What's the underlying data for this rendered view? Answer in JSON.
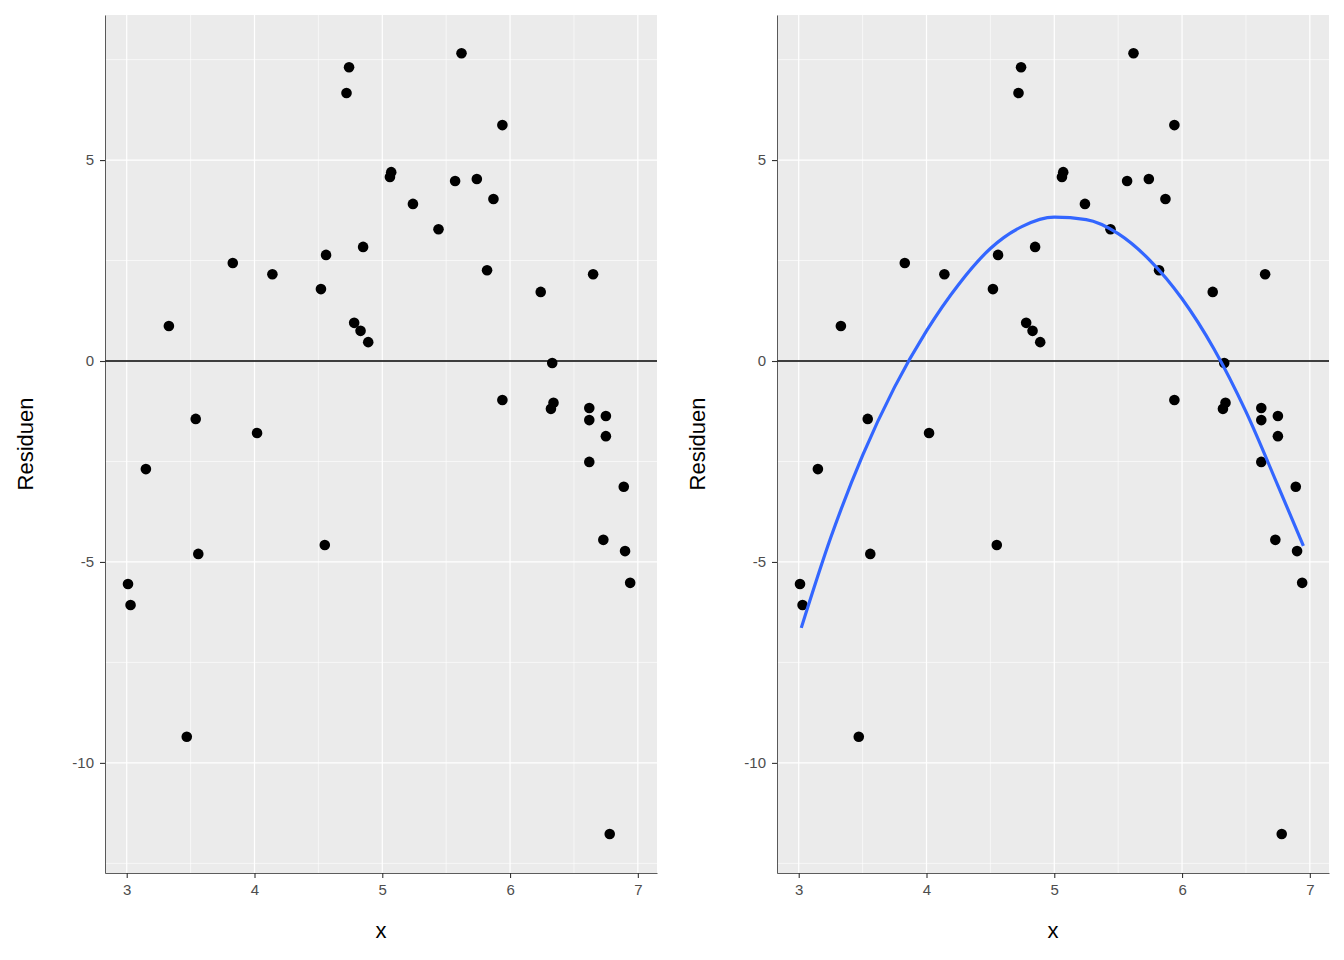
{
  "chart_data": [
    {
      "type": "scatter",
      "x_label": "x",
      "y_label": "Residuen",
      "xlim": [
        2.83,
        7.15
      ],
      "ylim": [
        -12.74,
        8.61
      ],
      "xticks": [
        3,
        4,
        5,
        6,
        7
      ],
      "yticks": [
        -10,
        -5,
        0,
        5
      ],
      "xminor": [
        3.5,
        4.5,
        5.5,
        6.5
      ],
      "yminor": [
        -12.5,
        -7.5,
        -2.5,
        2.5,
        7.5
      ],
      "grid": true,
      "hline": 0,
      "series": [
        {
          "type": "scatter",
          "color": "#000000",
          "marker": "circle",
          "x": [
            3.01,
            3.03,
            3.15,
            3.33,
            3.47,
            3.54,
            3.56,
            3.83,
            4.02,
            4.14,
            4.52,
            4.56,
            4.55,
            4.72,
            4.74,
            4.78,
            4.83,
            4.85,
            4.89,
            5.06,
            5.07,
            5.24,
            5.44,
            5.57,
            5.62,
            5.74,
            5.82,
            5.87,
            5.94,
            5.94,
            6.24,
            6.33,
            6.32,
            6.34,
            6.62,
            6.62,
            6.62,
            6.65,
            6.73,
            6.75,
            6.75,
            6.78,
            6.89,
            6.9,
            6.94
          ],
          "values": [
            -5.55,
            -6.07,
            -2.69,
            0.87,
            -9.35,
            -1.44,
            -4.8,
            2.44,
            -1.79,
            2.16,
            1.79,
            2.64,
            -4.58,
            6.67,
            7.31,
            0.95,
            0.75,
            2.84,
            0.47,
            4.58,
            4.7,
            3.91,
            3.28,
            4.48,
            7.66,
            4.53,
            2.26,
            4.03,
            5.87,
            -0.97,
            1.72,
            -0.05,
            -1.19,
            -1.04,
            -1.17,
            -1.47,
            -2.51,
            2.16,
            -4.45,
            -1.87,
            -1.37,
            -11.77,
            -3.13,
            -4.73,
            -5.52
          ]
        }
      ]
    },
    {
      "type": "scatter",
      "x_label": "x",
      "y_label": "Residuen",
      "xlim": [
        2.83,
        7.15
      ],
      "ylim": [
        -12.74,
        8.61
      ],
      "xticks": [
        3,
        4,
        5,
        6,
        7
      ],
      "yticks": [
        -10,
        -5,
        0,
        5
      ],
      "xminor": [
        3.5,
        4.5,
        5.5,
        6.5
      ],
      "yminor": [
        -12.5,
        -7.5,
        -2.5,
        2.5,
        7.5
      ],
      "grid": true,
      "hline": 0,
      "series": [
        {
          "type": "scatter",
          "color": "#000000",
          "marker": "circle",
          "x": [
            3.01,
            3.03,
            3.15,
            3.33,
            3.47,
            3.54,
            3.56,
            3.83,
            4.02,
            4.14,
            4.52,
            4.56,
            4.55,
            4.72,
            4.74,
            4.78,
            4.83,
            4.85,
            4.89,
            5.06,
            5.07,
            5.24,
            5.44,
            5.57,
            5.62,
            5.74,
            5.82,
            5.87,
            5.94,
            5.94,
            6.24,
            6.33,
            6.32,
            6.34,
            6.62,
            6.62,
            6.62,
            6.65,
            6.73,
            6.75,
            6.75,
            6.78,
            6.89,
            6.9,
            6.94
          ],
          "values": [
            -5.55,
            -6.07,
            -2.69,
            0.87,
            -9.35,
            -1.44,
            -4.8,
            2.44,
            -1.79,
            2.16,
            1.79,
            2.64,
            -4.58,
            6.67,
            7.31,
            0.95,
            0.75,
            2.84,
            0.47,
            4.58,
            4.7,
            3.91,
            3.28,
            4.48,
            7.66,
            4.53,
            2.26,
            4.03,
            5.87,
            -0.97,
            1.72,
            -0.05,
            -1.19,
            -1.04,
            -1.17,
            -1.47,
            -2.51,
            2.16,
            -4.45,
            -1.87,
            -1.37,
            -11.77,
            -3.13,
            -4.73,
            -5.52
          ]
        },
        {
          "type": "line",
          "color": "#3366ff",
          "line_style": "solid",
          "x": [
            3.02,
            3.25,
            3.5,
            3.75,
            4.0,
            4.25,
            4.5,
            4.75,
            5.0,
            5.25,
            5.5,
            5.75,
            6.0,
            6.25,
            6.5,
            6.75,
            6.95
          ],
          "values": [
            -6.64,
            -4.4,
            -2.35,
            -0.65,
            0.75,
            1.9,
            2.8,
            3.35,
            3.58,
            3.52,
            3.17,
            2.5,
            1.55,
            0.3,
            -1.26,
            -3.1,
            -4.6
          ]
        }
      ]
    }
  ]
}
